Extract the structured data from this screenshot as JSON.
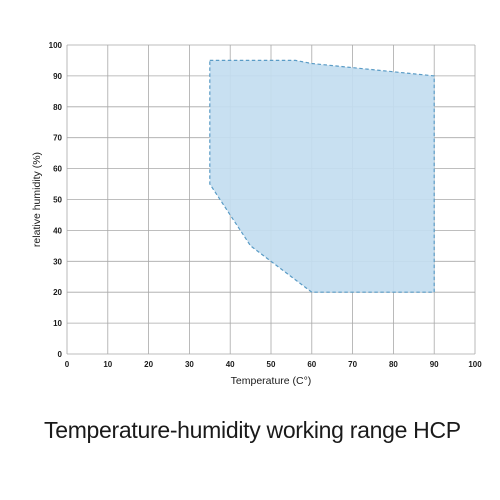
{
  "caption": "Temperature-humidity working range HCP",
  "chart_data": {
    "type": "area",
    "title": "",
    "xlabel": "Temperature (C°)",
    "ylabel": "relative humidity (%)",
    "xlim": [
      0,
      100
    ],
    "ylim": [
      0,
      100
    ],
    "x_ticks": [
      0,
      10,
      20,
      30,
      40,
      50,
      60,
      70,
      80,
      90,
      100
    ],
    "y_ticks": [
      0,
      10,
      20,
      30,
      40,
      50,
      60,
      70,
      80,
      90,
      100
    ],
    "grid": true,
    "fill_color": "#c3ddf0",
    "edge_color": "#5b9cc6",
    "edge_style": "dashed",
    "region": {
      "x": [
        35,
        56,
        60,
        90,
        90,
        60,
        45,
        35
      ],
      "y": [
        95,
        95,
        94,
        90,
        20,
        20,
        35,
        55
      ]
    }
  }
}
